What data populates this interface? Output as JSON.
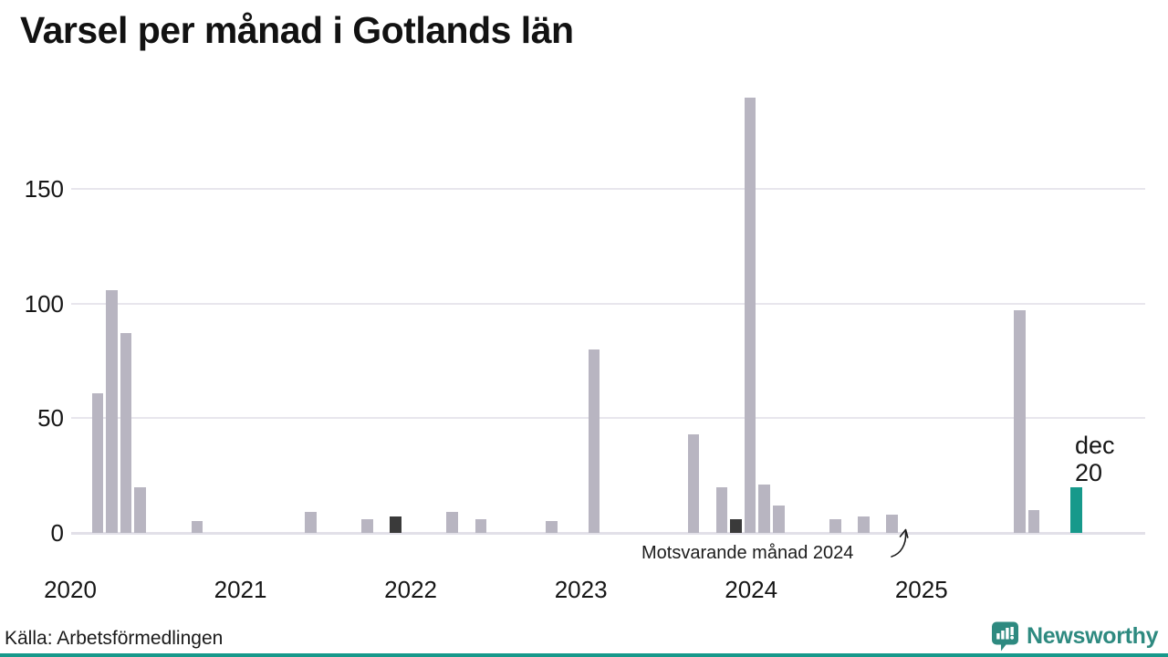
{
  "title": "Varsel per månad i Gotlands län",
  "source": "Källa: Arbetsförmedlingen",
  "annotation": {
    "text": "Motsvarande månad 2024",
    "arrow_icon": "curved-up-arrow-icon"
  },
  "current_point_label": {
    "line1": "dec",
    "line2": "20"
  },
  "branding": {
    "wordmark": "Newsworthy",
    "icon": "speech-bubble-chart-icon",
    "color": "#2e8a80"
  },
  "colors": {
    "bar_past": "#b8b5c1",
    "bar_reference": "#3a3a3a",
    "bar_current": "#17998b",
    "gridline": "#e8e6ed",
    "axis_text": "#161616",
    "accent_strip": "#17998b"
  },
  "chart_data": {
    "type": "bar",
    "title": "Varsel per månad i Gotlands län",
    "x_range_months": [
      "2020-01",
      "2025-12"
    ],
    "x_tick_labels": [
      "2020",
      "2021",
      "2022",
      "2023",
      "2024",
      "2025"
    ],
    "y_ticks": [
      0,
      50,
      100,
      150
    ],
    "ylim": [
      0,
      195
    ],
    "grid": "horizontal",
    "legend": "none",
    "months_not_listed_value": 0,
    "bars": [
      {
        "month": "2020-03",
        "value": 61,
        "type": "past"
      },
      {
        "month": "2020-04",
        "value": 106,
        "type": "past"
      },
      {
        "month": "2020-05",
        "value": 87,
        "type": "past"
      },
      {
        "month": "2020-06",
        "value": 20,
        "type": "past"
      },
      {
        "month": "2020-10",
        "value": 5,
        "type": "past"
      },
      {
        "month": "2021-06",
        "value": 9,
        "type": "past"
      },
      {
        "month": "2021-10",
        "value": 6,
        "type": "past"
      },
      {
        "month": "2021-12",
        "value": 7,
        "type": "reference"
      },
      {
        "month": "2022-04",
        "value": 9,
        "type": "past"
      },
      {
        "month": "2022-06",
        "value": 6,
        "type": "past"
      },
      {
        "month": "2022-11",
        "value": 5,
        "type": "past"
      },
      {
        "month": "2023-02",
        "value": 80,
        "type": "past"
      },
      {
        "month": "2023-09",
        "value": 43,
        "type": "past"
      },
      {
        "month": "2023-11",
        "value": 20,
        "type": "past"
      },
      {
        "month": "2023-12",
        "value": 6,
        "type": "reference"
      },
      {
        "month": "2024-01",
        "value": 190,
        "type": "past"
      },
      {
        "month": "2024-02",
        "value": 21,
        "type": "past"
      },
      {
        "month": "2024-03",
        "value": 12,
        "type": "past"
      },
      {
        "month": "2024-07",
        "value": 6,
        "type": "past"
      },
      {
        "month": "2024-09",
        "value": 7,
        "type": "past"
      },
      {
        "month": "2024-11",
        "value": 8,
        "type": "past"
      },
      {
        "month": "2024-12",
        "value": 0,
        "type": "reference"
      },
      {
        "month": "2025-08",
        "value": 97,
        "type": "past"
      },
      {
        "month": "2025-09",
        "value": 10,
        "type": "past"
      },
      {
        "month": "2025-12",
        "value": 20,
        "type": "current"
      }
    ]
  }
}
